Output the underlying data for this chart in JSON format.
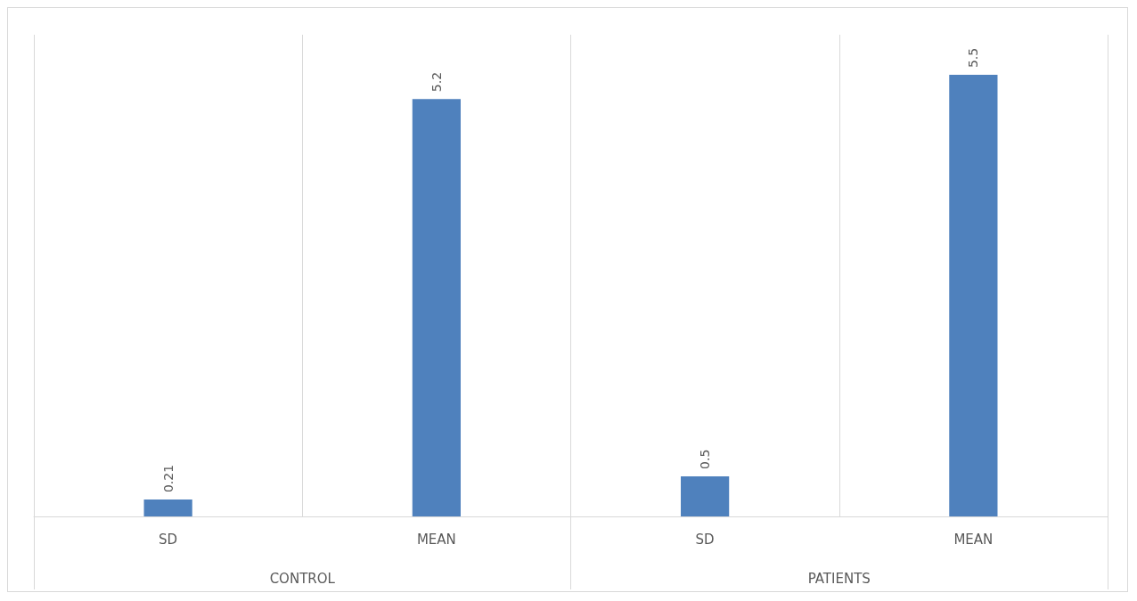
{
  "chart_data": {
    "type": "bar",
    "categories": [
      "SD",
      "MEAN",
      "SD",
      "MEAN"
    ],
    "values": [
      0.21,
      5.2,
      0.5,
      5.5
    ],
    "color": "#4f81bd",
    "data_labels": true,
    "grid": "x",
    "annotations": [
      "CONTROL",
      "PATIENTS"
    ]
  }
}
